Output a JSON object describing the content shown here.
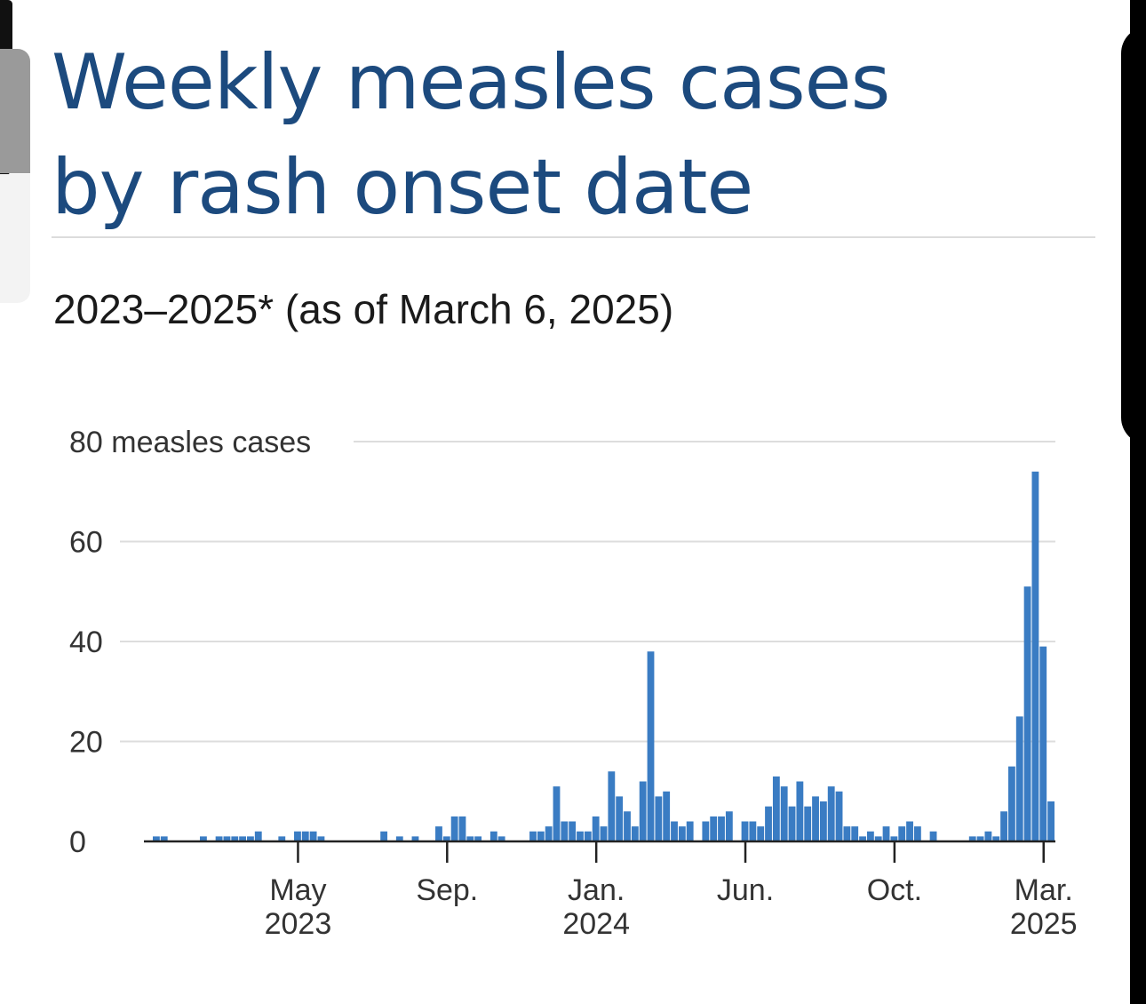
{
  "title_line1": "Weekly measles cases",
  "title_line2": "by rash onset date",
  "subtitle": "2023–2025* (as of March 6, 2025)",
  "colors": {
    "title": "#1c4a7e",
    "bar": "#3a7cc3",
    "grid": "#dddddd",
    "axis": "#222222"
  },
  "chart_data": {
    "type": "bar",
    "ylim": [
      0,
      80
    ],
    "y_ticks": [
      {
        "value": 80,
        "label": "80 measles cases"
      },
      {
        "value": 60,
        "label": "60"
      },
      {
        "value": 40,
        "label": "40"
      },
      {
        "value": 20,
        "label": "20"
      },
      {
        "value": 0,
        "label": "0"
      }
    ],
    "x_ticks": [
      {
        "index": 18.5,
        "label": "May",
        "sublabel": "2023"
      },
      {
        "index": 37.5,
        "label": "Sep.",
        "sublabel": ""
      },
      {
        "index": 56.5,
        "label": "Jan.",
        "sublabel": "2024"
      },
      {
        "index": 75.5,
        "label": "Jun.",
        "sublabel": ""
      },
      {
        "index": 94.5,
        "label": "Oct.",
        "sublabel": ""
      },
      {
        "index": 113.5,
        "label": "Mar.",
        "sublabel": "2025"
      }
    ],
    "values": [
      1,
      1,
      0,
      0,
      0,
      0,
      1,
      0,
      1,
      1,
      1,
      1,
      1,
      2,
      0,
      0,
      1,
      0,
      2,
      2,
      2,
      1,
      0,
      0,
      0,
      0,
      0,
      0,
      0,
      2,
      0,
      1,
      0,
      1,
      0,
      0,
      3,
      1,
      5,
      5,
      1,
      1,
      0,
      2,
      1,
      0,
      0,
      0,
      2,
      2,
      3,
      11,
      4,
      4,
      2,
      2,
      5,
      3,
      14,
      9,
      6,
      3,
      12,
      38,
      9,
      10,
      4,
      3,
      4,
      0,
      4,
      5,
      5,
      6,
      0,
      4,
      4,
      3,
      7,
      13,
      11,
      7,
      12,
      7,
      9,
      8,
      11,
      10,
      3,
      3,
      1,
      2,
      1,
      3,
      1,
      3,
      4,
      3,
      0,
      2,
      0,
      0,
      0,
      0,
      1,
      1,
      2,
      1,
      6,
      15,
      25,
      51,
      74,
      39,
      8
    ],
    "grid": true,
    "legend": "none"
  }
}
